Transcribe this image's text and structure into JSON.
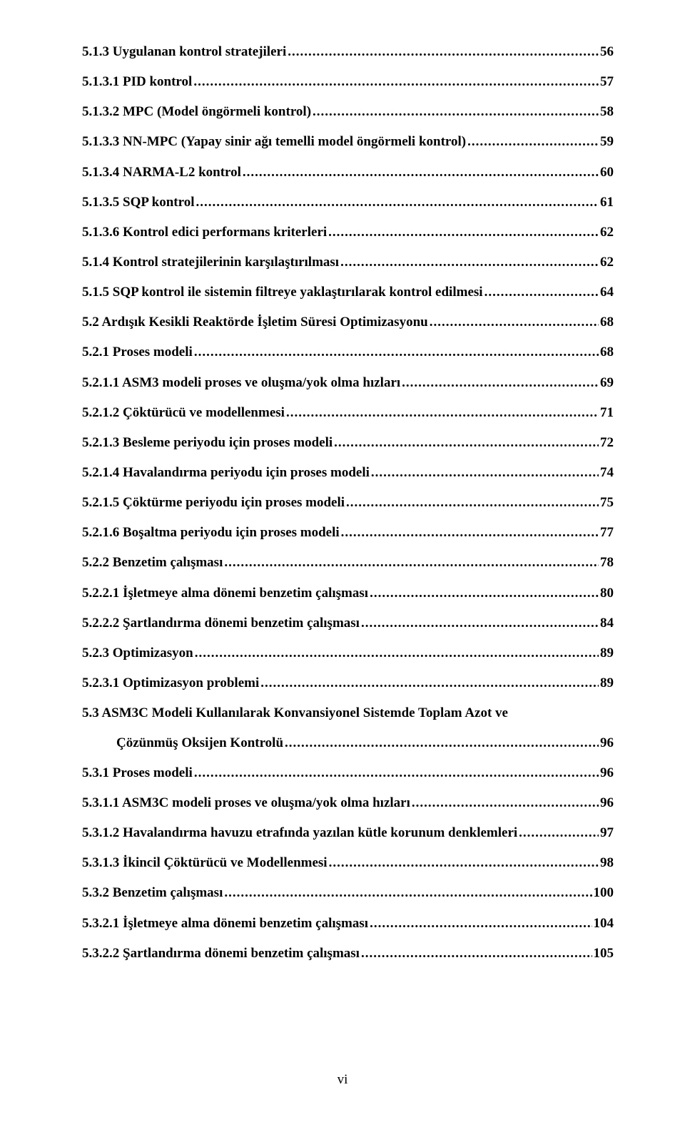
{
  "page_number_label": "vi",
  "font": {
    "family": "Times New Roman",
    "size_pt": 14,
    "weight": "bold",
    "color": "#000000"
  },
  "background_color": "#ffffff",
  "toc": [
    {
      "text": "5.1.3 Uygulanan kontrol stratejileri",
      "page": "56",
      "indent": 0
    },
    {
      "text": "5.1.3.1 PID kontrol",
      "page": "57",
      "indent": 0
    },
    {
      "text": "5.1.3.2 MPC (Model öngörmeli kontrol)",
      "page": "58",
      "indent": 0
    },
    {
      "text": "5.1.3.3 NN-MPC (Yapay sinir ağı temelli model öngörmeli kontrol)",
      "page": "59",
      "indent": 0
    },
    {
      "text": "5.1.3.4 NARMA-L2 kontrol",
      "page": "60",
      "indent": 0
    },
    {
      "text": "5.1.3.5 SQP kontrol",
      "page": "61",
      "indent": 0
    },
    {
      "text": "5.1.3.6 Kontrol edici performans kriterleri",
      "page": "62",
      "indent": 0
    },
    {
      "text": "5.1.4 Kontrol stratejilerinin karşılaştırılması",
      "page": "62",
      "indent": 0
    },
    {
      "text": "5.1.5 SQP kontrol ile sistemin filtreye yaklaştırılarak kontrol edilmesi",
      "page": "64",
      "indent": 0
    },
    {
      "text": "5.2 Ardışık Kesikli Reaktörde İşletim Süresi Optimizasyonu",
      "page": "68",
      "indent": 0
    },
    {
      "text": "5.2.1 Proses modeli",
      "page": "68",
      "indent": 0
    },
    {
      "text": "5.2.1.1 ASM3 modeli proses ve oluşma/yok olma hızları",
      "page": "69",
      "indent": 0
    },
    {
      "text": "5.2.1.2 Çöktürücü ve modellenmesi",
      "page": "71",
      "indent": 0
    },
    {
      "text": "5.2.1.3 Besleme periyodu için proses modeli",
      "page": "72",
      "indent": 0
    },
    {
      "text": "5.2.1.4 Havalandırma periyodu için proses modeli",
      "page": "74",
      "indent": 0
    },
    {
      "text": "5.2.1.5 Çöktürme periyodu için proses modeli",
      "page": "75",
      "indent": 0
    },
    {
      "text": "5.2.1.6 Boşaltma periyodu için proses modeli",
      "page": "77",
      "indent": 0
    },
    {
      "text": "5.2.2 Benzetim çalışması",
      "page": "78",
      "indent": 0
    },
    {
      "text": "5.2.2.1 İşletmeye alma dönemi benzetim çalışması",
      "page": "80",
      "indent": 0
    },
    {
      "text": "5.2.2.2 Şartlandırma dönemi benzetim çalışması",
      "page": "84",
      "indent": 0
    },
    {
      "text": "5.2.3 Optimizasyon",
      "page": "89",
      "indent": 0
    },
    {
      "text": "5.2.3.1 Optimizasyon problemi",
      "page": "89",
      "indent": 0
    },
    {
      "text_1": "5.3 ASM3C Modeli Kullanılarak Konvansiyonel Sistemde Toplam Azot ve",
      "text_2": "Çözünmüş Oksijen Kontrolü",
      "page": "96",
      "indent": 0,
      "wrap": true
    },
    {
      "text": "5.3.1 Proses modeli",
      "page": "96",
      "indent": 0
    },
    {
      "text": "5.3.1.1 ASM3C modeli proses ve oluşma/yok olma hızları",
      "page": "96",
      "indent": 0
    },
    {
      "text": "5.3.1.2 Havalandırma havuzu etrafında yazılan kütle korunum denklemleri",
      "page": "97",
      "indent": 0
    },
    {
      "text": "5.3.1.3 İkincil Çöktürücü ve Modellenmesi",
      "page": "98",
      "indent": 0
    },
    {
      "text": "5.3.2 Benzetim çalışması",
      "page": "100",
      "indent": 0
    },
    {
      "text": "5.3.2.1 İşletmeye alma dönemi benzetim çalışması",
      "page": "104",
      "indent": 0
    },
    {
      "text": "5.3.2.2 Şartlandırma dönemi benzetim çalışması",
      "page": "105",
      "indent": 0
    }
  ]
}
